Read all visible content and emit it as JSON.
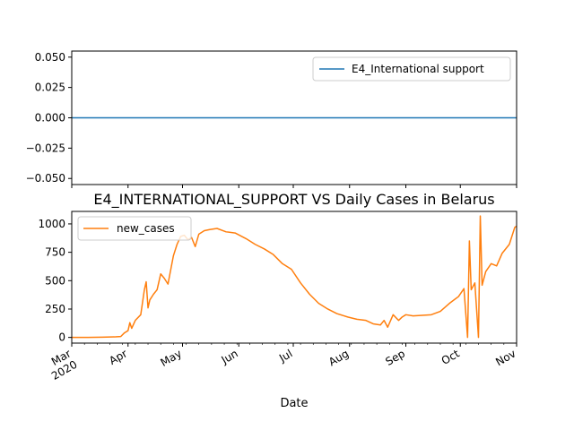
{
  "chart_data": [
    {
      "type": "line",
      "title": "",
      "xlabel": "",
      "ylabel": "",
      "ylim": [
        -0.055,
        0.055
      ],
      "yticks": [
        "−0.050",
        "−0.025",
        "0.000",
        "0.025",
        "0.050"
      ],
      "ytick_values": [
        -0.05,
        -0.025,
        0.0,
        0.025,
        0.05
      ],
      "legend": "top-right",
      "grid": false,
      "series": [
        {
          "name": "E4_International support",
          "color": "#1f77b4",
          "x": [
            "2020-03-01",
            "2020-11-01"
          ],
          "values": [
            0,
            0
          ]
        }
      ]
    },
    {
      "type": "line",
      "title": "E4_INTERNATIONAL_SUPPORT VS Daily Cases in Belarus",
      "xlabel": "Date",
      "ylabel": "",
      "ylim": [
        -50,
        1110
      ],
      "yticks": [
        "0",
        "250",
        "500",
        "750",
        "1000"
      ],
      "ytick_values": [
        0,
        250,
        500,
        750,
        1000
      ],
      "legend": "top-left",
      "grid": false,
      "xlim": [
        "2020-03-01",
        "2020-11-01"
      ],
      "xticks": [
        {
          "date": "2020-03-01",
          "label": "Mar",
          "sublabel": "2020"
        },
        {
          "date": "2020-04-01",
          "label": "Apr",
          "sublabel": ""
        },
        {
          "date": "2020-05-01",
          "label": "May",
          "sublabel": ""
        },
        {
          "date": "2020-06-01",
          "label": "Jun",
          "sublabel": ""
        },
        {
          "date": "2020-07-01",
          "label": "Jul",
          "sublabel": ""
        },
        {
          "date": "2020-08-01",
          "label": "Aug",
          "sublabel": ""
        },
        {
          "date": "2020-09-01",
          "label": "Sep",
          "sublabel": ""
        },
        {
          "date": "2020-10-01",
          "label": "Oct",
          "sublabel": ""
        },
        {
          "date": "2020-11-01",
          "label": "Nov",
          "sublabel": ""
        }
      ],
      "series": [
        {
          "name": "new_cases",
          "color": "#ff7f0e",
          "x": [
            "2020-03-01",
            "2020-03-10",
            "2020-03-18",
            "2020-03-25",
            "2020-03-28",
            "2020-03-30",
            "2020-04-01",
            "2020-04-02",
            "2020-04-03",
            "2020-04-05",
            "2020-04-08",
            "2020-04-10",
            "2020-04-11",
            "2020-04-12",
            "2020-04-13",
            "2020-04-15",
            "2020-04-17",
            "2020-04-19",
            "2020-04-21",
            "2020-04-23",
            "2020-04-26",
            "2020-04-28",
            "2020-04-30",
            "2020-05-02",
            "2020-05-04",
            "2020-05-06",
            "2020-05-08",
            "2020-05-10",
            "2020-05-13",
            "2020-05-16",
            "2020-05-20",
            "2020-05-25",
            "2020-05-30",
            "2020-06-05",
            "2020-06-10",
            "2020-06-15",
            "2020-06-20",
            "2020-06-25",
            "2020-06-30",
            "2020-07-05",
            "2020-07-10",
            "2020-07-15",
            "2020-07-20",
            "2020-07-25",
            "2020-07-31",
            "2020-08-05",
            "2020-08-10",
            "2020-08-14",
            "2020-08-18",
            "2020-08-20",
            "2020-08-22",
            "2020-08-25",
            "2020-08-28",
            "2020-08-30",
            "2020-09-01",
            "2020-09-05",
            "2020-09-10",
            "2020-09-15",
            "2020-09-20",
            "2020-09-25",
            "2020-09-30",
            "2020-10-03",
            "2020-10-05",
            "2020-10-06",
            "2020-10-07",
            "2020-10-09",
            "2020-10-11",
            "2020-10-12",
            "2020-10-13",
            "2020-10-15",
            "2020-10-18",
            "2020-10-21",
            "2020-10-24",
            "2020-10-28",
            "2020-10-31",
            "2020-11-01"
          ],
          "values": [
            0,
            0,
            2,
            5,
            8,
            40,
            60,
            130,
            80,
            150,
            200,
            420,
            490,
            260,
            330,
            380,
            420,
            560,
            520,
            470,
            720,
            820,
            890,
            900,
            860,
            880,
            800,
            910,
            940,
            950,
            960,
            930,
            920,
            870,
            820,
            780,
            730,
            650,
            600,
            480,
            380,
            300,
            250,
            210,
            180,
            160,
            150,
            120,
            110,
            150,
            90,
            200,
            150,
            180,
            200,
            190,
            195,
            200,
            230,
            300,
            360,
            430,
            0,
            850,
            420,
            480,
            0,
            1070,
            460,
            580,
            650,
            630,
            740,
            820,
            970,
            980
          ]
        }
      ]
    }
  ]
}
